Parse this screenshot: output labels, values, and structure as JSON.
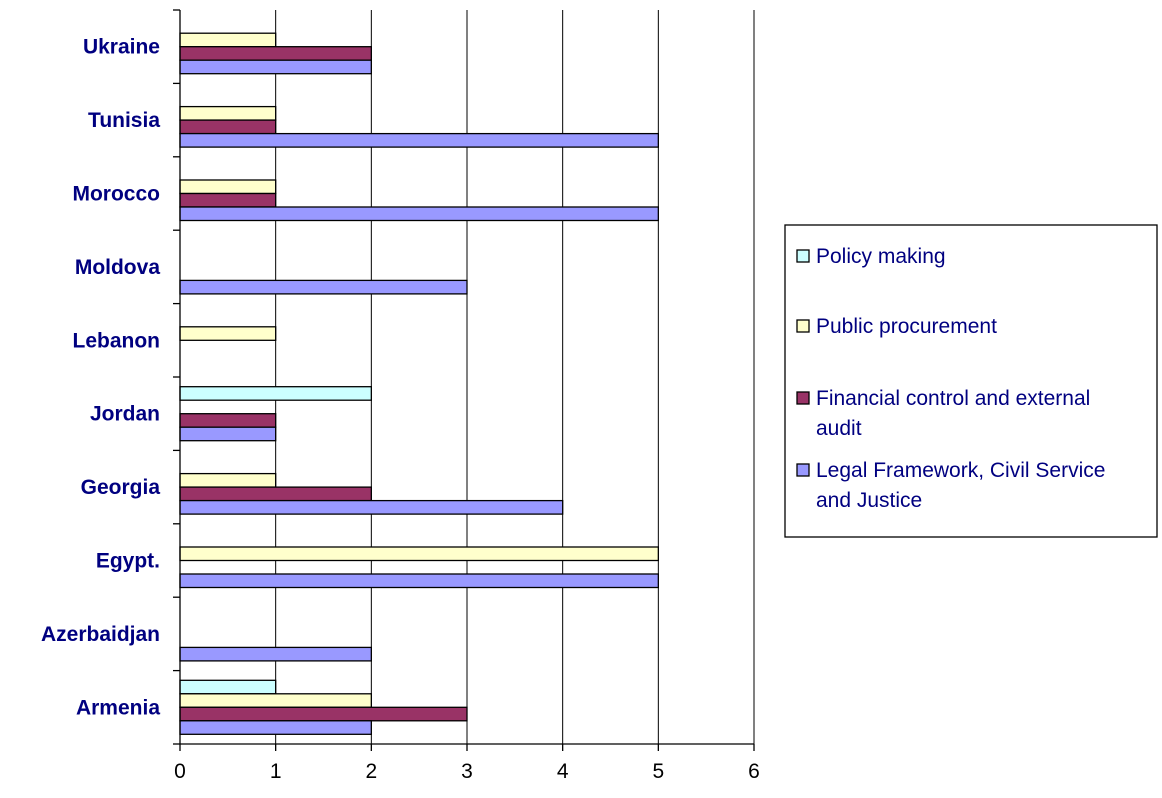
{
  "chart_data": {
    "type": "bar",
    "orientation": "horizontal",
    "categories": [
      "Armenia",
      "Azerbaidjan",
      "Egypt.",
      "Georgia",
      "Jordan",
      "Lebanon",
      "Moldova",
      "Morocco",
      "Tunisia",
      "Ukraine"
    ],
    "series": [
      {
        "name": "Policy making",
        "color": "#CCFFFF",
        "values": [
          1,
          0,
          0,
          0,
          2,
          0,
          0,
          0,
          0,
          0
        ]
      },
      {
        "name": "Public procurement",
        "color": "#FFFFCC",
        "values": [
          2,
          0,
          5,
          1,
          0,
          1,
          0,
          1,
          1,
          1
        ]
      },
      {
        "name": "Financial control and external audit",
        "color": "#993366",
        "values": [
          3,
          0,
          0,
          2,
          1,
          0,
          0,
          1,
          1,
          2
        ]
      },
      {
        "name": "Legal Framework, Civil Service and Justice",
        "color": "#9999FF",
        "values": [
          2,
          2,
          5,
          4,
          1,
          0,
          3,
          5,
          5,
          2
        ]
      }
    ],
    "legend_lines": [
      [
        "Policy making"
      ],
      [
        "Public procurement"
      ],
      [
        "Financial control and external",
        "audit"
      ],
      [
        "Legal Framework, Civil Service",
        "and Justice"
      ]
    ],
    "xlim": [
      0,
      6
    ],
    "xticks": [
      "0",
      "1",
      "2",
      "3",
      "4",
      "5",
      "6"
    ],
    "grid": "vertical",
    "legend_position": "right",
    "title": "",
    "xlabel": "",
    "ylabel": ""
  }
}
